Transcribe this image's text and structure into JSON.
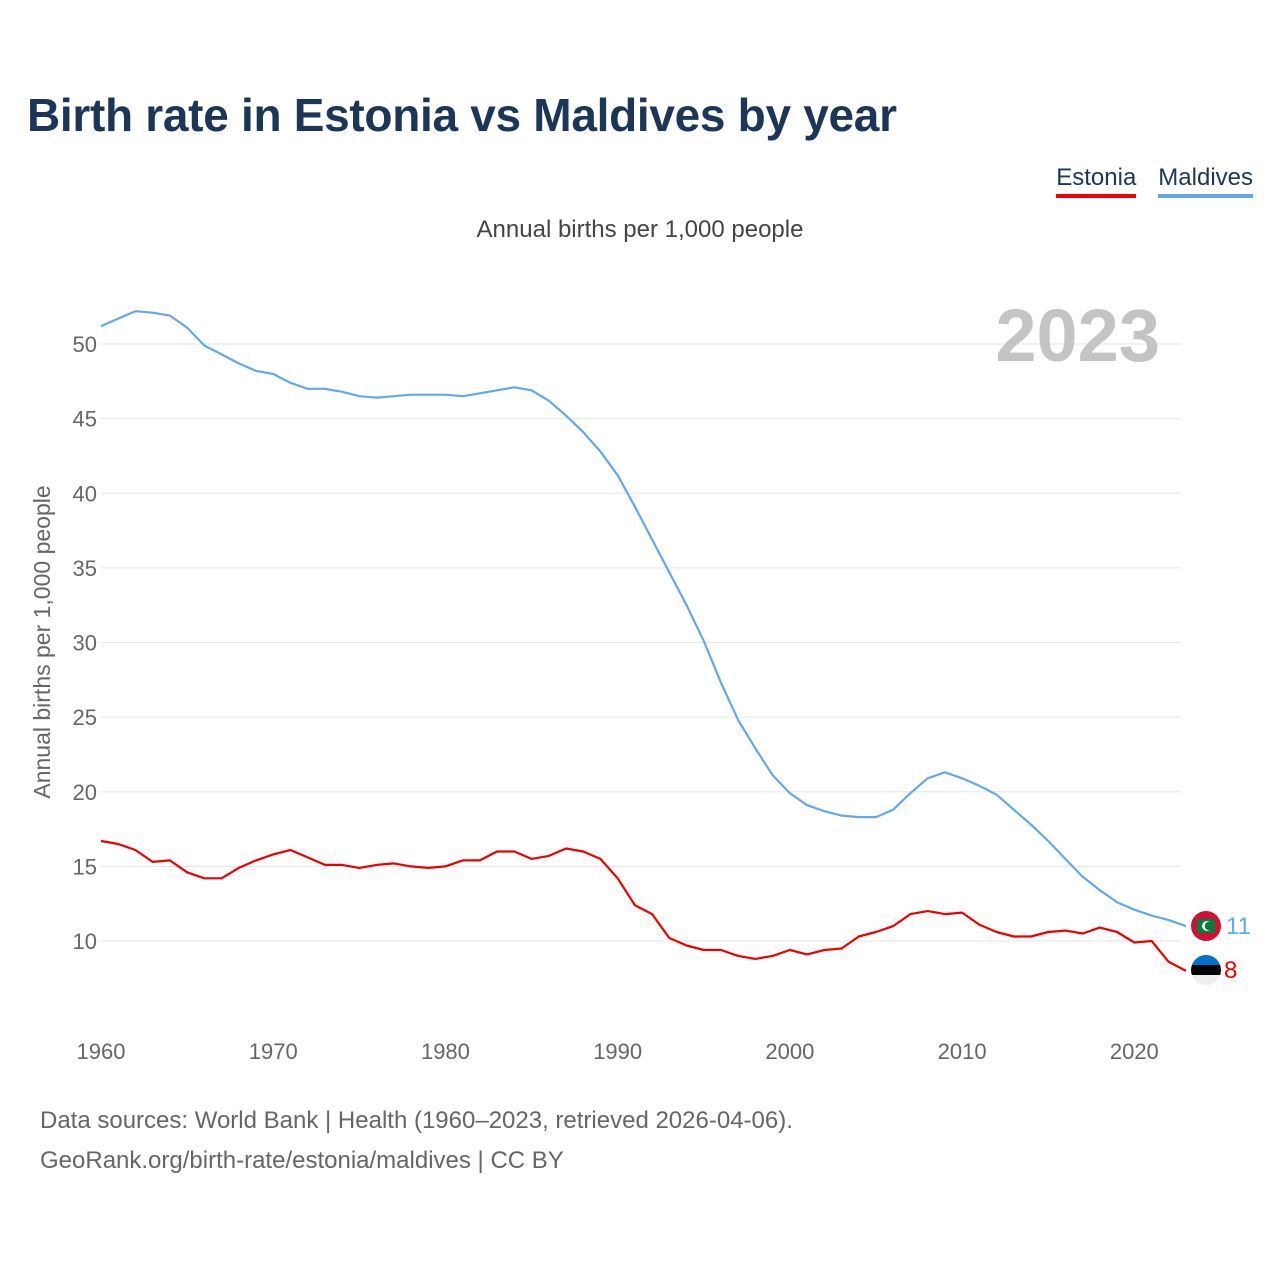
{
  "title": "Birth rate in Estonia vs Maldives by year",
  "legend": {
    "estonia": "Estonia",
    "maldives": "Maldives"
  },
  "subtitle": "Annual births per 1,000 people",
  "year_label": "2023",
  "footer": {
    "line1": "Data sources: World Bank | Health (1960–2023, retrieved 2026-04-06).",
    "line2": "GeoRank.org/birth-rate/estonia/maldives | CC BY"
  },
  "colors": {
    "estonia": "#ee0000",
    "maldives": "#64a8e8",
    "grid": "#e6e6e6",
    "axis_text": "#666666"
  },
  "chart_data": {
    "type": "line",
    "ylabel": "Annual births per 1,000 people",
    "xlabel": "",
    "xlim": [
      1960,
      2023
    ],
    "ylim": [
      5,
      54
    ],
    "yticks": [
      10,
      15,
      20,
      25,
      30,
      35,
      40,
      45,
      50
    ],
    "xticks": [
      1960,
      1970,
      1980,
      1990,
      2000,
      2010,
      2020
    ],
    "x": [
      1960,
      1961,
      1962,
      1963,
      1964,
      1965,
      1966,
      1967,
      1968,
      1969,
      1970,
      1971,
      1972,
      1973,
      1974,
      1975,
      1976,
      1977,
      1978,
      1979,
      1980,
      1981,
      1982,
      1983,
      1984,
      1985,
      1986,
      1987,
      1988,
      1989,
      1990,
      1991,
      1992,
      1993,
      1994,
      1995,
      1996,
      1997,
      1998,
      1999,
      2000,
      2001,
      2002,
      2003,
      2004,
      2005,
      2006,
      2007,
      2008,
      2009,
      2010,
      2011,
      2012,
      2013,
      2014,
      2015,
      2016,
      2017,
      2018,
      2019,
      2020,
      2021,
      2022,
      2023
    ],
    "series": [
      {
        "name": "Estonia",
        "key": "estonia",
        "end_label": "8",
        "values": [
          16.7,
          16.5,
          16.1,
          15.3,
          15.4,
          14.6,
          14.2,
          14.2,
          14.9,
          15.4,
          15.8,
          16.1,
          15.6,
          15.1,
          15.1,
          14.9,
          15.1,
          15.2,
          15.0,
          14.9,
          15.0,
          15.4,
          15.4,
          16.0,
          16.0,
          15.5,
          15.7,
          16.2,
          16.0,
          15.5,
          14.2,
          12.4,
          11.8,
          10.2,
          9.7,
          9.4,
          9.4,
          9.0,
          8.8,
          9.0,
          9.4,
          9.1,
          9.4,
          9.5,
          10.3,
          10.6,
          11.0,
          11.8,
          12.0,
          11.8,
          11.9,
          11.1,
          10.6,
          10.3,
          10.3,
          10.6,
          10.7,
          10.5,
          10.9,
          10.6,
          9.9,
          10.0,
          8.6,
          8.0
        ]
      },
      {
        "name": "Maldives",
        "key": "maldives",
        "end_label": "11",
        "values": [
          51.2,
          51.7,
          52.2,
          52.1,
          51.9,
          51.1,
          49.9,
          49.3,
          48.7,
          48.2,
          48.0,
          47.4,
          47.0,
          47.0,
          46.8,
          46.5,
          46.4,
          46.5,
          46.6,
          46.6,
          46.6,
          46.5,
          46.7,
          46.9,
          47.1,
          46.9,
          46.2,
          45.2,
          44.1,
          42.8,
          41.2,
          39.1,
          36.9,
          34.7,
          32.5,
          30.1,
          27.3,
          24.8,
          22.9,
          21.1,
          19.9,
          19.1,
          18.7,
          18.4,
          18.3,
          18.3,
          18.8,
          19.9,
          20.9,
          21.3,
          20.9,
          20.4,
          19.8,
          18.8,
          17.8,
          16.7,
          15.5,
          14.3,
          13.4,
          12.6,
          12.1,
          11.7,
          11.4,
          11.0
        ]
      }
    ]
  }
}
